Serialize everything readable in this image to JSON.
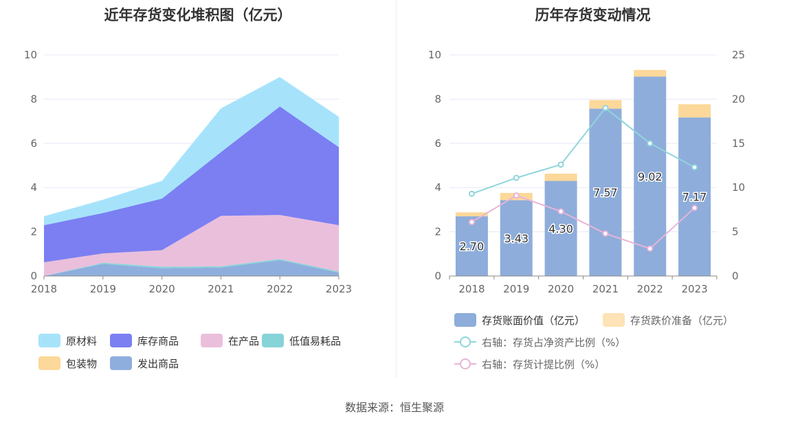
{
  "source_text": "数据来源：恒生聚源",
  "colors": {
    "raw_material": "#a6e3fb",
    "stock_goods": "#7b7ff2",
    "wip": "#eabfdc",
    "low_value": "#86d4d8",
    "packaging": "#fcd89a",
    "shipped": "#8eaede",
    "book_value": "#8eaddb",
    "impairment": "#fde3b5",
    "ratio_asset": "#8fd5db",
    "ratio_provision": "#e8b4d8",
    "grid": "#e6e8f5",
    "axis": "#888888"
  },
  "chart_data": [
    {
      "type": "area",
      "title": "近年存货变化堆积图（亿元）",
      "x": [
        "2018",
        "2019",
        "2020",
        "2021",
        "2022",
        "2023"
      ],
      "ylim": [
        0,
        10
      ],
      "yticks": [
        "0",
        "2",
        "4",
        "6",
        "8",
        "10"
      ],
      "stacked": true,
      "grid": true,
      "legend_position": "bottom",
      "series": [
        {
          "name": "发出商品",
          "color_key": "shipped",
          "values": [
            0.0,
            0.55,
            0.35,
            0.38,
            0.72,
            0.15
          ]
        },
        {
          "name": "包装物",
          "color_key": "packaging",
          "values": [
            0.0,
            0.0,
            0.0,
            0.0,
            0.0,
            0.0
          ]
        },
        {
          "name": "低值易耗品",
          "color_key": "low_value",
          "values": [
            0.0,
            0.05,
            0.07,
            0.06,
            0.05,
            0.05
          ]
        },
        {
          "name": "在产品",
          "color_key": "wip",
          "values": [
            0.62,
            0.42,
            0.75,
            2.28,
            1.99,
            2.1
          ]
        },
        {
          "name": "库存商品",
          "color_key": "stock_goods",
          "values": [
            1.68,
            1.83,
            2.33,
            2.88,
            4.91,
            3.53
          ]
        },
        {
          "name": "原材料",
          "color_key": "raw_material",
          "values": [
            0.4,
            0.6,
            0.8,
            1.98,
            1.33,
            1.37
          ]
        }
      ],
      "legend": [
        {
          "label": "原材料",
          "color_key": "raw_material"
        },
        {
          "label": "库存商品",
          "color_key": "stock_goods"
        },
        {
          "label": "在产品",
          "color_key": "wip"
        },
        {
          "label": "低值易耗品",
          "color_key": "low_value"
        },
        {
          "label": "包装物",
          "color_key": "packaging"
        },
        {
          "label": "发出商品",
          "color_key": "shipped"
        }
      ]
    },
    {
      "type": "bar",
      "title": "历年存货变动情况",
      "x": [
        "2018",
        "2019",
        "2020",
        "2021",
        "2022",
        "2023"
      ],
      "ylim": [
        0,
        10
      ],
      "yticks": [
        "0",
        "2",
        "4",
        "6",
        "8",
        "10"
      ],
      "y2lim": [
        0,
        25
      ],
      "y2ticks": [
        "0",
        "5",
        "10",
        "15",
        "20",
        "25"
      ],
      "stacked": true,
      "grid": true,
      "legend_position": "bottom",
      "series": [
        {
          "name": "存货账面价值（亿元）",
          "color_key": "book_value",
          "kind": "bar",
          "values": [
            2.7,
            3.43,
            4.3,
            7.57,
            9.02,
            7.17
          ],
          "labels": [
            "2.70",
            "3.43",
            "4.30",
            "7.57",
            "9.02",
            "7.17"
          ]
        },
        {
          "name": "存货跌价准备（亿元）",
          "color_key": "impairment",
          "kind": "bar",
          "values": [
            0.18,
            0.33,
            0.33,
            0.39,
            0.3,
            0.6
          ]
        },
        {
          "name": "右轴：存货占净资产比例（%）",
          "color_key": "ratio_asset",
          "kind": "line",
          "axis": "right",
          "values": [
            9.3,
            11.1,
            12.6,
            19.0,
            15.0,
            12.3
          ]
        },
        {
          "name": "右轴：存货计提比例（%）",
          "color_key": "ratio_provision",
          "kind": "line",
          "axis": "right",
          "values": [
            6.1,
            9.1,
            7.3,
            4.8,
            3.1,
            7.7
          ]
        }
      ]
    }
  ]
}
